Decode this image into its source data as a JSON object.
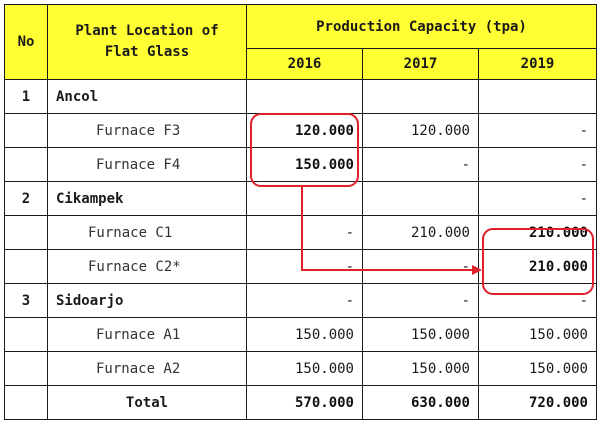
{
  "header": {
    "no": "No",
    "location": "Plant Location of Flat Glass",
    "capacity": "Production Capacity (tpa)",
    "years": [
      "2016",
      "2017",
      "2019"
    ]
  },
  "groups": [
    {
      "no": "1",
      "name": "Ancol",
      "values": [
        "",
        "",
        ""
      ]
    },
    {
      "no": "2",
      "name": "Cikampek",
      "values": [
        "",
        "",
        "-"
      ]
    },
    {
      "no": "3",
      "name": "Sidoarjo",
      "values": [
        "-",
        "-",
        "-"
      ]
    }
  ],
  "rows": {
    "f3": {
      "name": "Furnace F3",
      "values": [
        "120.000",
        "120.000",
        "-"
      ]
    },
    "f4": {
      "name": "Furnace F4",
      "values": [
        "150.000",
        "-",
        "-"
      ]
    },
    "c1": {
      "name": "Furnace C1",
      "values": [
        "-",
        "210.000",
        "210.000"
      ]
    },
    "c2": {
      "name": "Furnace C2*",
      "values": [
        "-",
        "-",
        "210.000"
      ]
    },
    "a1": {
      "name": "Furnace A1",
      "values": [
        "150.000",
        "150.000",
        "150.000"
      ]
    },
    "a2": {
      "name": "Furnace A2",
      "values": [
        "150.000",
        "150.000",
        "150.000"
      ]
    }
  },
  "total": {
    "label": "Total",
    "values": [
      "570.000",
      "630.000",
      "720.000"
    ]
  },
  "colors": {
    "header_bg": "#ffff33",
    "highlight": "#e0202a"
  }
}
